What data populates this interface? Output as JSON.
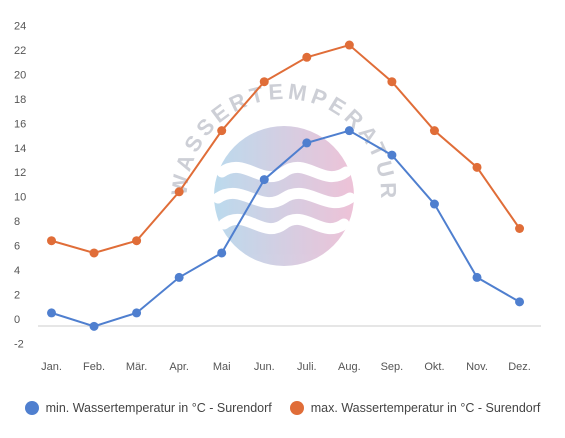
{
  "chart_data": {
    "type": "line",
    "categories": [
      "Jan.",
      "Feb.",
      "Mär.",
      "Apr.",
      "Mai",
      "Jun.",
      "Juli.",
      "Aug.",
      "Sep.",
      "Okt.",
      "Nov.",
      "Dez."
    ],
    "series": [
      {
        "name": "min. Wassertemperatur in °C - Surendorf",
        "color": "#4f7fcf",
        "values": [
          0.5,
          -0.6,
          0.5,
          3.4,
          5.4,
          11.4,
          14.4,
          15.4,
          13.4,
          9.4,
          3.4,
          1.4
        ]
      },
      {
        "name": "max. Wassertemperatur in °C - Surendorf",
        "color": "#e06d38",
        "values": [
          6.4,
          5.4,
          6.4,
          10.4,
          15.4,
          19.4,
          21.4,
          22.4,
          19.4,
          15.4,
          12.4,
          7.4
        ]
      }
    ],
    "yticks": [
      "-2",
      "0",
      "2",
      "4",
      "6",
      "8",
      "10",
      "12",
      "14",
      "16",
      "18",
      "20",
      "22",
      "24"
    ],
    "ylim": [
      -2,
      24
    ],
    "grid": false,
    "legend": "bottom",
    "watermark": "WASSERTEMPERATUR.ORG"
  }
}
